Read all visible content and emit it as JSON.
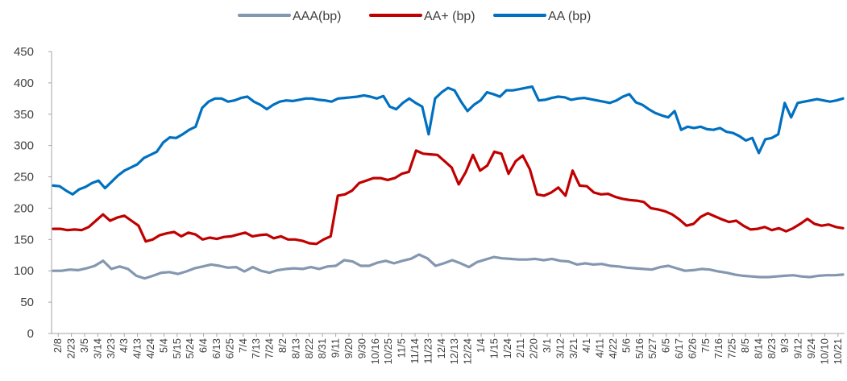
{
  "chart_data": {
    "type": "line",
    "title": "",
    "xlabel": "",
    "ylabel": "",
    "ylim": [
      0,
      450
    ],
    "yticks": [
      0,
      50,
      100,
      150,
      200,
      250,
      300,
      350,
      400,
      450
    ],
    "grid": false,
    "legend_position": "top-center",
    "x_tick_labels": [
      "2/8",
      "2/23",
      "3/5",
      "3/14",
      "3/23",
      "4/3",
      "4/13",
      "4/24",
      "5/4",
      "5/15",
      "5/24",
      "6/4",
      "6/13",
      "6/25",
      "7/4",
      "7/13",
      "7/24",
      "8/2",
      "8/13",
      "8/22",
      "8/31",
      "9/11",
      "9/20",
      "9/30",
      "10/16",
      "10/25",
      "11/5",
      "11/14",
      "11/23",
      "12/4",
      "12/13",
      "12/24",
      "1/4",
      "1/15",
      "1/24",
      "2/11",
      "2/20",
      "3/1",
      "3/12",
      "3/21",
      "4/1",
      "4/11",
      "4/22",
      "5/6",
      "5/16",
      "5/27",
      "6/5",
      "6/17",
      "6/26",
      "7/5",
      "7/16",
      "7/25",
      "8/5",
      "8/14",
      "8/23",
      "9/3",
      "9/12",
      "9/24",
      "10/10",
      "10/21"
    ],
    "series": [
      {
        "name": "AAA(bp)",
        "color": "#8497B0",
        "values": [
          100,
          100,
          102,
          101,
          104,
          108,
          116,
          103,
          107,
          103,
          92,
          88,
          92,
          97,
          98,
          95,
          99,
          104,
          107,
          110,
          108,
          105,
          106,
          99,
          106,
          100,
          97,
          101,
          103,
          104,
          103,
          106,
          103,
          107,
          108,
          117,
          115,
          108,
          108,
          113,
          116,
          112,
          116,
          119,
          126,
          120,
          108,
          112,
          117,
          112,
          106,
          114,
          118,
          122,
          120,
          119,
          118,
          118,
          119,
          117,
          119,
          116,
          115,
          110,
          112,
          110,
          111,
          108,
          107,
          105,
          104,
          103,
          102,
          106,
          108,
          104,
          100,
          101,
          103,
          102,
          99,
          97,
          94,
          92,
          91,
          90,
          90,
          91,
          92,
          93,
          91,
          90,
          92,
          93,
          93,
          94
        ]
      },
      {
        "name": "AA+ (bp)",
        "color": "#C00000",
        "values": [
          167,
          167,
          165,
          166,
          165,
          170,
          180,
          190,
          180,
          185,
          188,
          180,
          172,
          147,
          150,
          157,
          160,
          162,
          155,
          161,
          158,
          150,
          153,
          151,
          154,
          155,
          158,
          161,
          155,
          157,
          158,
          152,
          155,
          150,
          150,
          148,
          144,
          143,
          150,
          155,
          220,
          222,
          228,
          240,
          244,
          248,
          248,
          245,
          248,
          255,
          258,
          292,
          287,
          286,
          285,
          275,
          265,
          238,
          258,
          285,
          260,
          268,
          290,
          287,
          255,
          275,
          284,
          262,
          222,
          220,
          225,
          233,
          220,
          260,
          236,
          235,
          225,
          222,
          223,
          218,
          215,
          213,
          212,
          210,
          200,
          198,
          195,
          190,
          182,
          172,
          175,
          186,
          192,
          187,
          182,
          178,
          180,
          172,
          166,
          167,
          170,
          165,
          168,
          163,
          168,
          175,
          183,
          175,
          172,
          174,
          170,
          168
        ]
      },
      {
        "name": "AA (bp)",
        "color": "#0070C0",
        "values": [
          236,
          235,
          228,
          222,
          230,
          234,
          240,
          244,
          232,
          242,
          252,
          260,
          265,
          270,
          280,
          285,
          290,
          305,
          313,
          312,
          318,
          325,
          330,
          360,
          370,
          375,
          375,
          370,
          372,
          376,
          378,
          370,
          365,
          358,
          365,
          370,
          372,
          371,
          373,
          375,
          375,
          373,
          372,
          370,
          375,
          376,
          377,
          378,
          380,
          378,
          375,
          379,
          362,
          358,
          368,
          375,
          368,
          362,
          318,
          375,
          385,
          392,
          388,
          370,
          355,
          365,
          372,
          385,
          382,
          378,
          388,
          388,
          390,
          392,
          394,
          372,
          373,
          376,
          378,
          377,
          373,
          375,
          376,
          374,
          372,
          370,
          368,
          372,
          378,
          382,
          369,
          365,
          358,
          352,
          348,
          345,
          355,
          325,
          330,
          328,
          330,
          326,
          325,
          328,
          322,
          320,
          315,
          308,
          312,
          288,
          310,
          312,
          318,
          368,
          345,
          368,
          370,
          372,
          374,
          372,
          370,
          372,
          375
        ]
      }
    ]
  }
}
